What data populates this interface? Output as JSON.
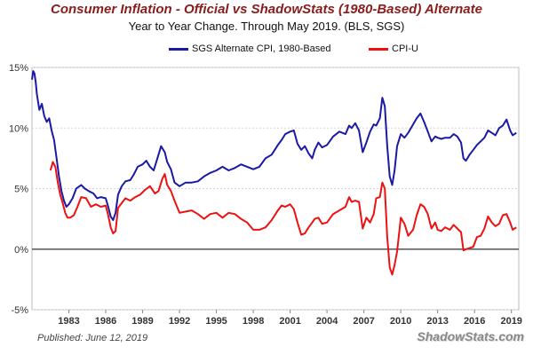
{
  "chart_data": {
    "type": "line",
    "title": "Consumer Inflation - Official vs ShadowStats (1980-Based) Alternate",
    "subtitle": "Year to Year Change. Through May 2019.   (BLS, SGS)",
    "xlabel": "",
    "ylabel": "",
    "xlim": [
      1980.0,
      2019.6
    ],
    "ylim": [
      -5,
      15
    ],
    "x_tick_labels": [
      "1983",
      "1986",
      "1989",
      "1992",
      "1995",
      "1998",
      "2001",
      "2004",
      "2007",
      "2010",
      "2013",
      "2016",
      "2019"
    ],
    "x_ticks": [
      1983,
      1986,
      1989,
      1992,
      1995,
      1998,
      2001,
      2004,
      2007,
      2010,
      2013,
      2016,
      2019
    ],
    "y_ticks": [
      -5,
      0,
      5,
      10,
      15
    ],
    "y_tick_labels": [
      "-5%",
      "0%",
      "5%",
      "10%",
      "15%"
    ],
    "grid": "horizontal",
    "legend_position": "top",
    "series": [
      {
        "name": "SGS Alternate CPI, 1980-Based",
        "color": "#1a1aa6",
        "x": [
          1980.0,
          1980.1,
          1980.2,
          1980.3,
          1980.4,
          1980.6,
          1980.8,
          1981.0,
          1981.2,
          1981.4,
          1981.6,
          1981.8,
          1982.0,
          1982.2,
          1982.4,
          1982.6,
          1982.8,
          1983.0,
          1983.3,
          1983.6,
          1984.0,
          1984.3,
          1984.6,
          1985.0,
          1985.3,
          1985.6,
          1986.0,
          1986.2,
          1986.4,
          1986.6,
          1986.8,
          1987.0,
          1987.3,
          1987.6,
          1988.0,
          1988.3,
          1988.6,
          1989.0,
          1989.3,
          1989.6,
          1989.9,
          1990.2,
          1990.5,
          1990.8,
          1991.0,
          1991.3,
          1991.6,
          1992.0,
          1992.5,
          1993.0,
          1993.5,
          1994.0,
          1994.5,
          1995.0,
          1995.5,
          1996.0,
          1996.5,
          1997.0,
          1997.5,
          1998.0,
          1998.5,
          1999.0,
          1999.5,
          2000.0,
          2000.3,
          2000.6,
          2001.0,
          2001.3,
          2001.6,
          2001.9,
          2002.2,
          2002.5,
          2002.8,
          2003.0,
          2003.3,
          2003.6,
          2004.0,
          2004.5,
          2005.0,
          2005.5,
          2005.8,
          2006.0,
          2006.3,
          2006.6,
          2006.9,
          2007.2,
          2007.5,
          2007.8,
          2008.0,
          2008.3,
          2008.5,
          2008.7,
          2008.9,
          2009.1,
          2009.3,
          2009.5,
          2009.7,
          2010.0,
          2010.3,
          2010.6,
          2011.0,
          2011.3,
          2011.6,
          2011.9,
          2012.2,
          2012.5,
          2012.8,
          2013.0,
          2013.3,
          2013.6,
          2014.0,
          2014.3,
          2014.6,
          2014.9,
          2015.1,
          2015.3,
          2015.6,
          2015.9,
          2016.2,
          2016.5,
          2016.8,
          2017.1,
          2017.4,
          2017.7,
          2018.0,
          2018.3,
          2018.6,
          2018.9,
          2019.1,
          2019.4
        ],
        "values": [
          14.0,
          14.7,
          14.5,
          13.8,
          12.8,
          11.5,
          12.0,
          11.0,
          10.5,
          10.8,
          9.8,
          9.0,
          7.5,
          6.0,
          4.8,
          4.0,
          3.5,
          3.7,
          4.2,
          5.0,
          5.3,
          5.0,
          4.8,
          4.6,
          4.2,
          4.3,
          4.2,
          3.5,
          2.7,
          2.4,
          3.0,
          4.5,
          5.2,
          5.6,
          5.7,
          6.2,
          6.8,
          7.0,
          7.3,
          6.8,
          6.5,
          7.5,
          8.5,
          8.0,
          7.2,
          6.6,
          5.5,
          5.2,
          5.5,
          5.5,
          5.6,
          6.0,
          6.3,
          6.5,
          6.8,
          6.5,
          6.7,
          7.0,
          6.8,
          6.6,
          6.8,
          7.5,
          7.8,
          8.6,
          9.0,
          9.5,
          9.7,
          9.8,
          8.7,
          8.2,
          8.5,
          7.9,
          7.5,
          8.2,
          8.8,
          8.4,
          8.6,
          9.3,
          9.7,
          9.5,
          10.2,
          10.0,
          10.4,
          9.8,
          8.0,
          8.8,
          9.7,
          10.3,
          10.2,
          10.8,
          12.5,
          11.8,
          8.5,
          6.0,
          5.3,
          6.5,
          8.5,
          9.5,
          9.2,
          9.6,
          10.3,
          10.8,
          11.2,
          10.5,
          9.7,
          8.9,
          9.3,
          9.2,
          9.1,
          9.2,
          9.2,
          9.5,
          9.3,
          8.8,
          7.5,
          7.3,
          7.8,
          8.2,
          8.6,
          8.9,
          9.2,
          9.8,
          9.6,
          9.4,
          10.0,
          10.2,
          10.7,
          9.8,
          9.4,
          9.6
        ]
      },
      {
        "name": "CPI-U",
        "color": "#ee1111",
        "x": [
          1981.5,
          1981.7,
          1981.9,
          1982.1,
          1982.3,
          1982.5,
          1982.7,
          1982.9,
          1983.1,
          1983.4,
          1983.7,
          1984.0,
          1984.4,
          1984.8,
          1985.2,
          1985.6,
          1986.0,
          1986.2,
          1986.4,
          1986.6,
          1986.8,
          1987.0,
          1987.3,
          1987.6,
          1988.0,
          1988.4,
          1988.8,
          1989.2,
          1989.6,
          1990.0,
          1990.3,
          1990.6,
          1990.8,
          1991.0,
          1991.3,
          1991.6,
          1992.0,
          1992.5,
          1993.0,
          1993.5,
          1994.0,
          1994.5,
          1995.0,
          1995.5,
          1996.0,
          1996.5,
          1997.0,
          1997.5,
          1998.0,
          1998.5,
          1999.0,
          1999.5,
          2000.0,
          2000.3,
          2000.6,
          2001.0,
          2001.3,
          2001.6,
          2001.9,
          2002.2,
          2002.5,
          2002.8,
          2003.0,
          2003.3,
          2003.6,
          2004.0,
          2004.5,
          2005.0,
          2005.5,
          2005.8,
          2006.0,
          2006.3,
          2006.6,
          2006.9,
          2007.2,
          2007.5,
          2007.8,
          2008.0,
          2008.3,
          2008.5,
          2008.7,
          2008.9,
          2009.1,
          2009.3,
          2009.5,
          2009.7,
          2010.0,
          2010.3,
          2010.6,
          2011.0,
          2011.3,
          2011.6,
          2011.9,
          2012.2,
          2012.5,
          2012.8,
          2013.0,
          2013.3,
          2013.6,
          2014.0,
          2014.3,
          2014.6,
          2014.9,
          2015.1,
          2015.3,
          2015.6,
          2015.9,
          2016.2,
          2016.5,
          2016.8,
          2017.1,
          2017.4,
          2017.7,
          2018.0,
          2018.3,
          2018.6,
          2018.9,
          2019.1,
          2019.4
        ],
        "values": [
          6.5,
          7.2,
          6.8,
          5.5,
          4.5,
          3.8,
          3.0,
          2.6,
          2.6,
          2.8,
          3.5,
          4.3,
          4.2,
          3.5,
          3.7,
          3.5,
          3.6,
          2.8,
          1.8,
          1.3,
          1.5,
          3.4,
          3.8,
          4.2,
          4.0,
          4.3,
          4.5,
          4.9,
          5.2,
          4.6,
          4.8,
          5.8,
          6.2,
          5.3,
          4.8,
          4.0,
          3.0,
          3.1,
          3.2,
          2.9,
          2.5,
          2.9,
          3.0,
          2.6,
          3.0,
          2.9,
          2.5,
          2.2,
          1.6,
          1.6,
          1.8,
          2.4,
          3.2,
          3.6,
          3.5,
          3.7,
          3.3,
          2.2,
          1.2,
          1.3,
          1.8,
          2.2,
          2.5,
          2.6,
          2.1,
          2.2,
          2.9,
          3.2,
          3.5,
          4.3,
          3.9,
          4.0,
          3.9,
          1.7,
          2.6,
          2.2,
          2.9,
          4.2,
          4.3,
          5.5,
          5.0,
          1.0,
          -1.5,
          -2.1,
          -1.3,
          -0.2,
          2.6,
          2.1,
          1.1,
          1.6,
          2.8,
          3.7,
          3.5,
          2.9,
          1.7,
          2.2,
          1.6,
          1.5,
          1.8,
          1.6,
          2.0,
          1.7,
          1.4,
          -0.1,
          0.0,
          0.1,
          0.2,
          1.0,
          1.1,
          1.7,
          2.7,
          2.2,
          1.9,
          2.1,
          2.8,
          2.9,
          2.2,
          1.6,
          1.8
        ]
      }
    ]
  },
  "footer": {
    "published": "Published: June 12, 2019",
    "brand": "ShadowStats.com"
  }
}
